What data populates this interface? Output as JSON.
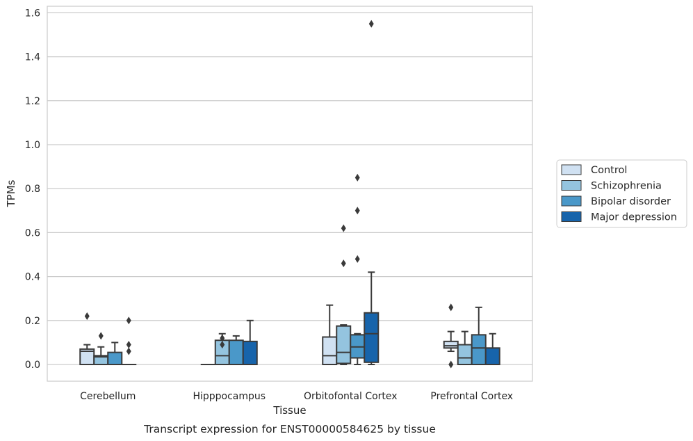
{
  "caption": "Transcript expression for ENST00000584625 by tissue",
  "chart_data": {
    "type": "box",
    "title": "",
    "xlabel": "Tissue",
    "ylabel": "TPMs",
    "ylim": [
      -0.075,
      1.63
    ],
    "yticks": [
      "0.0",
      "0.2",
      "0.4",
      "0.6",
      "0.8",
      "1.0",
      "1.2",
      "1.4",
      "1.6"
    ],
    "grid": "horizontal",
    "legend_position": "right",
    "categories": [
      "Cerebellum",
      "Hipppocampus",
      "Orbitofontal Cortex",
      "Prefrontal Cortex"
    ],
    "series": [
      {
        "name": "Control",
        "color": "#d0e1f2",
        "boxes": [
          {
            "q1": 0.0,
            "median": 0.06,
            "q3": 0.07,
            "whisker_low": 0.0,
            "whisker_high": 0.09,
            "outliers": [
              0.22
            ]
          },
          {
            "q1": 0.0,
            "median": 0.0,
            "q3": 0.0,
            "whisker_low": 0.0,
            "whisker_high": 0.0,
            "outliers": []
          },
          {
            "q1": 0.0,
            "median": 0.04,
            "q3": 0.125,
            "whisker_low": 0.0,
            "whisker_high": 0.27,
            "outliers": []
          },
          {
            "q1": 0.075,
            "median": 0.085,
            "q3": 0.105,
            "whisker_low": 0.06,
            "whisker_high": 0.15,
            "outliers": [
              0.26,
              0.0
            ]
          }
        ]
      },
      {
        "name": "Schizophrenia",
        "color": "#94c4df",
        "boxes": [
          {
            "q1": 0.0,
            "median": 0.035,
            "q3": 0.04,
            "whisker_low": 0.0,
            "whisker_high": 0.08,
            "outliers": [
              0.13
            ]
          },
          {
            "q1": 0.0,
            "median": 0.04,
            "q3": 0.11,
            "whisker_low": 0.0,
            "whisker_high": 0.14,
            "outliers": [
              0.12,
              0.09
            ]
          },
          {
            "q1": 0.005,
            "median": 0.055,
            "q3": 0.175,
            "whisker_low": 0.0,
            "whisker_high": 0.18,
            "outliers": [
              0.62,
              0.46
            ]
          },
          {
            "q1": 0.0,
            "median": 0.03,
            "q3": 0.09,
            "whisker_low": 0.0,
            "whisker_high": 0.15,
            "outliers": []
          }
        ]
      },
      {
        "name": "Bipolar disorder",
        "color": "#4a98c9",
        "boxes": [
          {
            "q1": 0.0,
            "median": 0.0,
            "q3": 0.055,
            "whisker_low": 0.0,
            "whisker_high": 0.1,
            "outliers": []
          },
          {
            "q1": 0.0,
            "median": 0.0,
            "q3": 0.11,
            "whisker_low": 0.0,
            "whisker_high": 0.13,
            "outliers": []
          },
          {
            "q1": 0.03,
            "median": 0.08,
            "q3": 0.135,
            "whisker_low": 0.0,
            "whisker_high": 0.14,
            "outliers": [
              0.85,
              0.7,
              0.48
            ]
          },
          {
            "q1": 0.0,
            "median": 0.075,
            "q3": 0.135,
            "whisker_low": 0.0,
            "whisker_high": 0.26,
            "outliers": []
          }
        ]
      },
      {
        "name": "Major depression",
        "color": "#1764ab",
        "boxes": [
          {
            "q1": 0.0,
            "median": 0.0,
            "q3": 0.0,
            "whisker_low": 0.0,
            "whisker_high": 0.0,
            "outliers": [
              0.2,
              0.09,
              0.06
            ]
          },
          {
            "q1": 0.0,
            "median": 0.0,
            "q3": 0.105,
            "whisker_low": 0.0,
            "whisker_high": 0.2,
            "outliers": []
          },
          {
            "q1": 0.01,
            "median": 0.14,
            "q3": 0.235,
            "whisker_low": 0.0,
            "whisker_high": 0.42,
            "outliers": [
              1.55
            ]
          },
          {
            "q1": 0.0,
            "median": 0.0,
            "q3": 0.075,
            "whisker_low": 0.0,
            "whisker_high": 0.14,
            "outliers": []
          }
        ]
      }
    ]
  }
}
